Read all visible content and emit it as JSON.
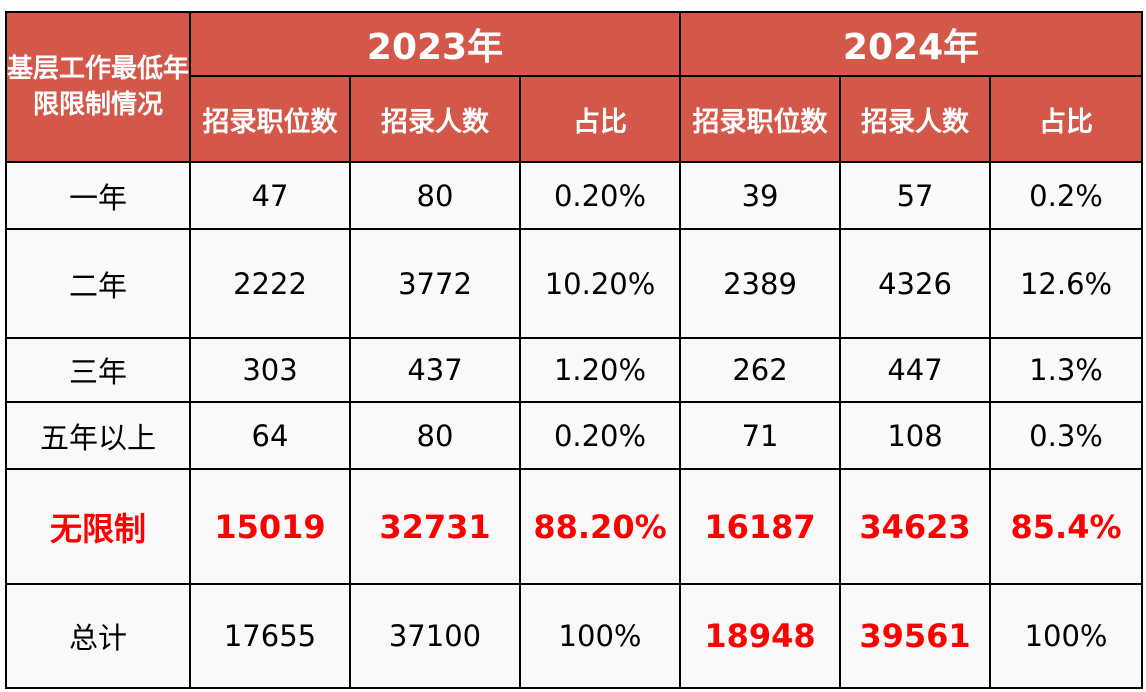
{
  "header": {
    "corner": "基层工作最低年限限制情况",
    "years": [
      "2023年",
      "2024年"
    ],
    "subcolumns": [
      "招录职位数",
      "招录人数",
      "占比",
      "招录职位数",
      "招录人数",
      "占比"
    ]
  },
  "rows": [
    {
      "label": "一年",
      "cells": [
        "47",
        "80",
        "0.20%",
        "39",
        "57",
        "0.2%"
      ]
    },
    {
      "label": "二年",
      "cells": [
        "2222",
        "3772",
        "10.20%",
        "2389",
        "4326",
        "12.6%"
      ]
    },
    {
      "label": "三年",
      "cells": [
        "303",
        "437",
        "1.20%",
        "262",
        "447",
        "1.3%"
      ]
    },
    {
      "label": "五年以上",
      "cells": [
        "64",
        "80",
        "0.20%",
        "71",
        "108",
        "0.3%"
      ]
    },
    {
      "label": "无限制",
      "cells": [
        "15019",
        "32731",
        "88.20%",
        "16187",
        "34623",
        "85.4%"
      ]
    },
    {
      "label": "总计",
      "cells": [
        "17655",
        "37100",
        "100%",
        "18948",
        "39561",
        "100%"
      ]
    }
  ],
  "colors": {
    "header_bg": "#d4584a",
    "highlight": "#ff0000"
  }
}
